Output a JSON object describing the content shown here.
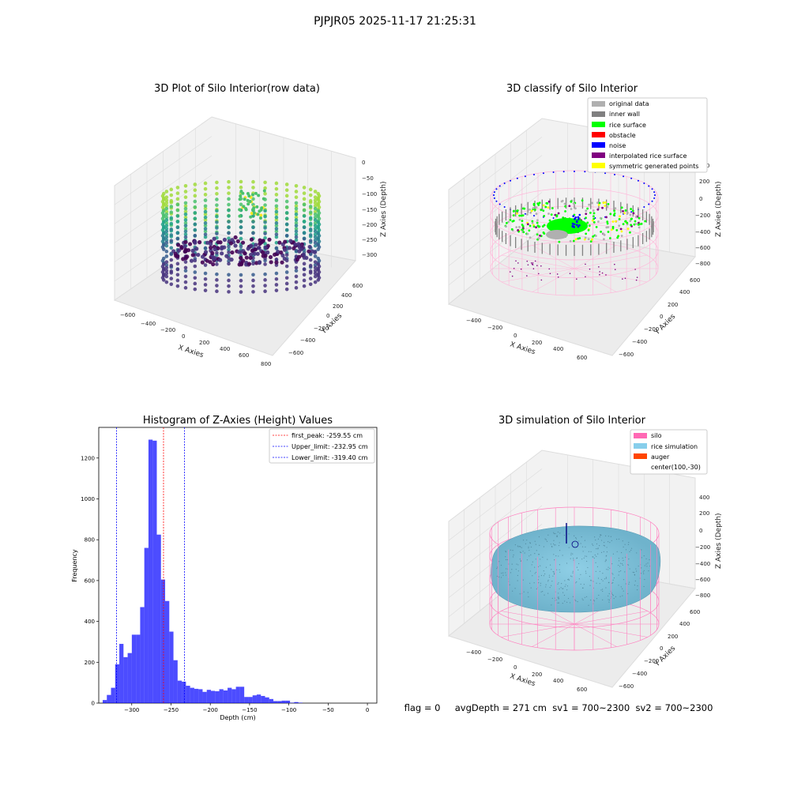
{
  "figure": {
    "suptitle": "PJPJR05 2025-11-17 21:25:31",
    "status_line": "flag = 0     avgDepth = 271 cm  sv1 = 700~2300  sv2 = 700~2300"
  },
  "panels": {
    "raw": {
      "title": "3D Plot of Silo Interior(row data)",
      "xlabel": "X Axies",
      "ylabel": "Y Axies",
      "zlabel": "Z Axies (Depth)",
      "xticks": [
        "−600",
        "−400",
        "−200",
        "0",
        "200",
        "400",
        "600",
        "800"
      ],
      "yticks": [
        "−600",
        "−400",
        "−200",
        "0",
        "200",
        "400",
        "600"
      ],
      "zticks": [
        "0",
        "−50",
        "−100",
        "−150",
        "−200",
        "−250",
        "−300"
      ]
    },
    "classify": {
      "title": "3D classify of Silo Interior",
      "xlabel": "X Axies",
      "ylabel": "Y Axies",
      "zlabel": "Z Axies (Depth)",
      "xticks": [
        "−400",
        "−200",
        "0",
        "200",
        "400",
        "600"
      ],
      "yticks": [
        "−600",
        "−400",
        "−200",
        "0",
        "200",
        "400",
        "600"
      ],
      "zticks": [
        "400",
        "200",
        "0",
        "−200",
        "−400",
        "−600",
        "−800"
      ],
      "legend": [
        {
          "label": "original data",
          "color": "#b0b0b0"
        },
        {
          "label": "inner wall",
          "color": "#808080"
        },
        {
          "label": "rice surface",
          "color": "#00ff00"
        },
        {
          "label": "obstacle",
          "color": "#ff0000"
        },
        {
          "label": "noise",
          "color": "#0000ff"
        },
        {
          "label": "interpolated rice surface",
          "color": "#800080"
        },
        {
          "label": "symmetric generated points",
          "color": "#ffff00"
        }
      ]
    },
    "simulation": {
      "title": "3D simulation of Silo Interior",
      "xlabel": "X Axies",
      "ylabel": "Y Axies",
      "zlabel": "Z Axies (Depth)",
      "xticks": [
        "−400",
        "−200",
        "0",
        "200",
        "400",
        "600"
      ],
      "yticks": [
        "−600",
        "−400",
        "−200",
        "0",
        "200",
        "400",
        "600"
      ],
      "zticks": [
        "400",
        "200",
        "0",
        "−200",
        "−400",
        "−600",
        "−800"
      ],
      "legend": [
        {
          "label": "silo",
          "color": "#ff69b4"
        },
        {
          "label": "rice simulation",
          "color": "#87ceeb"
        },
        {
          "label": "auger",
          "color": "#ff4500"
        },
        {
          "label": "center(100,-30)",
          "color": "none"
        }
      ]
    }
  },
  "chart_data": [
    {
      "type": "scatter",
      "title": "3D Plot of Silo Interior(row data)",
      "xlabel": "X Axies",
      "ylabel": "Y Axies",
      "zlabel": "Z Axies (Depth)",
      "xlim": [
        -650,
        850
      ],
      "ylim": [
        -700,
        700
      ],
      "zlim": [
        -330,
        10
      ],
      "colormap": "viridis"
    },
    {
      "type": "scatter",
      "title": "3D classify of Silo Interior",
      "xlabel": "X Axies",
      "ylabel": "Y Axies",
      "zlabel": "Z Axies (Depth)",
      "xlim": [
        -500,
        700
      ],
      "ylim": [
        -700,
        700
      ],
      "zlim": [
        -900,
        420
      ],
      "legend_position": "top-right"
    },
    {
      "type": "bar",
      "title": "Histogram of Z-Axies (Height) Values",
      "xlabel": "Depth (cm)",
      "ylabel": "Frequency",
      "xlim": [
        -342,
        12
      ],
      "ylim": [
        0,
        1350
      ],
      "xticks": [
        -300,
        -250,
        -200,
        -150,
        -100,
        -50,
        0
      ],
      "yticks": [
        0,
        200,
        400,
        600,
        800,
        1000,
        1200
      ],
      "bin_start": -337,
      "bin_width": 5.3,
      "values": [
        15,
        40,
        75,
        190,
        290,
        225,
        245,
        335,
        335,
        470,
        760,
        1290,
        1285,
        825,
        605,
        500,
        350,
        210,
        110,
        105,
        85,
        75,
        70,
        68,
        55,
        65,
        60,
        58,
        68,
        62,
        75,
        68,
        80,
        80,
        30,
        30,
        38,
        42,
        35,
        28,
        20,
        10,
        10,
        12,
        12,
        2,
        5,
        2
      ],
      "color": "#0000ff",
      "vlines": [
        {
          "label": "first_peak: -259.55 cm",
          "x": -259.55,
          "color": "#ff0000"
        },
        {
          "label": "Upper_limit: -232.95 cm",
          "x": -232.95,
          "color": "#0000ff"
        },
        {
          "label": "Lower_limit: -319.40 cm",
          "x": -319.4,
          "color": "#0000ff"
        }
      ],
      "legend_position": "top-right"
    },
    {
      "type": "scatter",
      "title": "3D simulation of Silo Interior",
      "xlabel": "X Axies",
      "ylabel": "Y Axies",
      "zlabel": "Z Axies (Depth)",
      "xlim": [
        -500,
        700
      ],
      "ylim": [
        -700,
        700
      ],
      "zlim": [
        -900,
        420
      ],
      "legend_position": "top-right"
    }
  ]
}
